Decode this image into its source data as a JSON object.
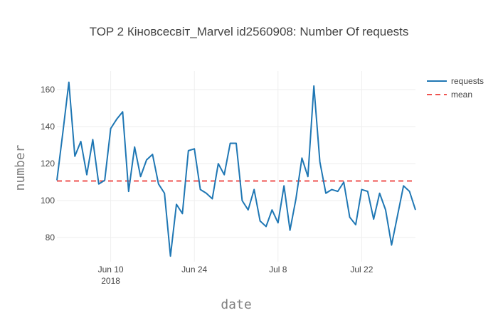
{
  "chart_data": {
    "type": "line",
    "title": "TOP 2 Кіновсесвіт_Marvel id2560908: Number Of requests",
    "xlabel": "date",
    "ylabel": "number",
    "x_start": "2018-06-01",
    "x": [
      "2018-06-01",
      "2018-06-02",
      "2018-06-03",
      "2018-06-04",
      "2018-06-05",
      "2018-06-06",
      "2018-06-07",
      "2018-06-08",
      "2018-06-09",
      "2018-06-10",
      "2018-06-11",
      "2018-06-12",
      "2018-06-13",
      "2018-06-14",
      "2018-06-15",
      "2018-06-16",
      "2018-06-17",
      "2018-06-18",
      "2018-06-19",
      "2018-06-20",
      "2018-06-21",
      "2018-06-22",
      "2018-06-23",
      "2018-06-24",
      "2018-06-25",
      "2018-06-26",
      "2018-06-27",
      "2018-06-28",
      "2018-06-29",
      "2018-06-30",
      "2018-07-01",
      "2018-07-02",
      "2018-07-03",
      "2018-07-04",
      "2018-07-05",
      "2018-07-06",
      "2018-07-07",
      "2018-07-08",
      "2018-07-09",
      "2018-07-10",
      "2018-07-11",
      "2018-07-12",
      "2018-07-13",
      "2018-07-14",
      "2018-07-15",
      "2018-07-16",
      "2018-07-17",
      "2018-07-18",
      "2018-07-19",
      "2018-07-20",
      "2018-07-21",
      "2018-07-22",
      "2018-07-23",
      "2018-07-24",
      "2018-07-25",
      "2018-07-26",
      "2018-07-27",
      "2018-07-28",
      "2018-07-29",
      "2018-07-30",
      "2018-07-31"
    ],
    "series": [
      {
        "name": "requests",
        "color": "#1f77b4",
        "values": [
          111,
          137,
          164,
          124,
          132,
          114,
          133,
          109,
          111,
          139,
          144,
          148,
          105,
          129,
          113,
          122,
          125,
          109,
          104,
          70,
          98,
          93,
          127,
          128,
          106,
          104,
          101,
          120,
          114,
          131,
          131,
          100,
          95,
          106,
          89,
          86,
          95,
          88,
          108,
          84,
          101,
          123,
          113,
          162,
          121,
          104,
          106,
          105,
          110,
          91,
          87,
          106,
          105,
          90,
          104,
          95,
          76,
          92,
          108,
          105,
          95
        ]
      },
      {
        "name": "mean",
        "color": "#ef5350",
        "style": "dashed",
        "values_constant": 110.6
      }
    ],
    "ylim": [
      67,
      170
    ],
    "yticks": [
      80,
      100,
      120,
      140,
      160
    ],
    "xticks": [
      {
        "date": "2018-06-10",
        "label": "Jun 10",
        "sublabel": "2018"
      },
      {
        "date": "2018-06-24",
        "label": "Jun 24",
        "sublabel": ""
      },
      {
        "date": "2018-07-08",
        "label": "Jul 8",
        "sublabel": ""
      },
      {
        "date": "2018-07-22",
        "label": "Jul 22",
        "sublabel": ""
      }
    ],
    "grid": true,
    "legend_position": "top-right"
  }
}
